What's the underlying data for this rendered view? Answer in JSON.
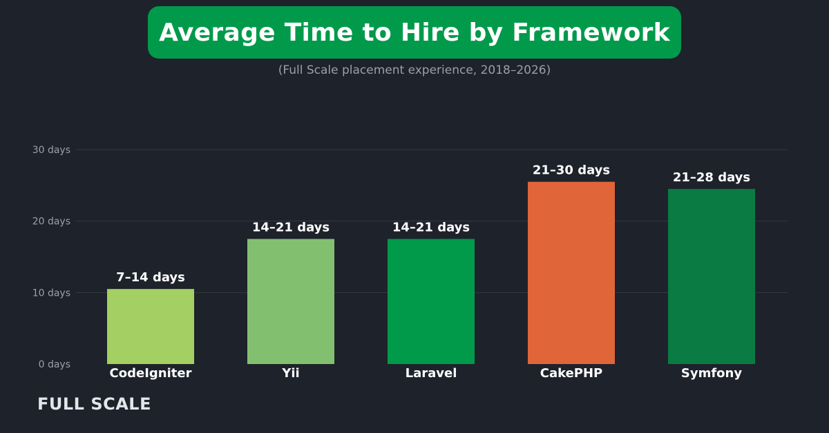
{
  "header": {
    "title": "Average Time to Hire by Framework",
    "subtitle": "(Full Scale placement experience, 2018–2026)"
  },
  "brand": {
    "label": "FULL SCALE"
  },
  "colors": {
    "background": "#1e222b",
    "title_pill": "#019a4b",
    "grid": "#343944",
    "axis_text": "#9aa0a8",
    "label_text": "#ffffff"
  },
  "chart_data": {
    "type": "bar",
    "title": "Average Time to Hire by Framework",
    "subtitle": "(Full Scale placement experience, 2018–2026)",
    "xlabel": "",
    "ylabel": "",
    "ylim": [
      0,
      30
    ],
    "yticks": [
      0,
      10,
      20,
      30
    ],
    "ytick_labels": [
      "0 days",
      "10 days",
      "20 days",
      "30 days"
    ],
    "grid": true,
    "legend": "none",
    "categories": [
      "CodeIgniter",
      "Yii",
      "Laravel",
      "CakePHP",
      "Symfony"
    ],
    "values": [
      10.5,
      17.5,
      17.5,
      25.5,
      24.5
    ],
    "data_labels": [
      "7–14 days",
      "14–21 days",
      "14–21 days",
      "21–30 days",
      "21–28 days"
    ],
    "bar_colors": [
      "#a4cf62",
      "#82c070",
      "#019a4b",
      "#e06639",
      "#0a7b43"
    ]
  }
}
